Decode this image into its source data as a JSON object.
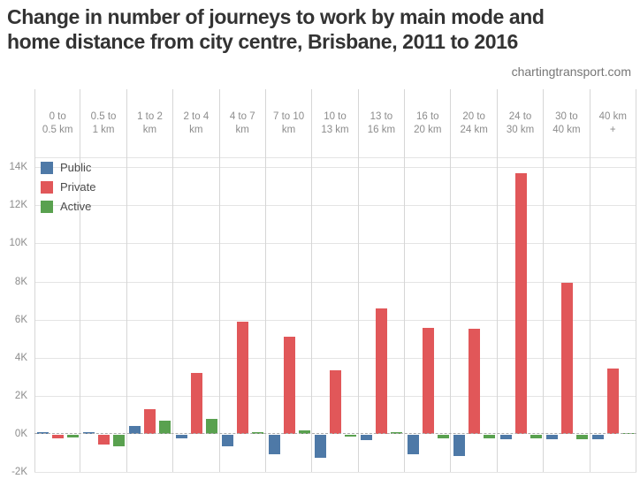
{
  "title": {
    "line1": "Change in number of journeys to work by main mode and",
    "line2": "home distance from city centre, Brisbane, 2011 to 2016"
  },
  "watermark": "chartingtransport.com",
  "chart_data": {
    "type": "bar",
    "title": "Change in number of journeys to work by main mode and home distance from city centre, Brisbane, 2011 to 2016",
    "source_label": "chartingtransport.com",
    "categories": [
      "0 to 0.5 km",
      "0.5 to 1 km",
      "1 to 2 km",
      "2 to 4 km",
      "4 to 7 km",
      "7 to 10 km",
      "10 to 13 km",
      "13 to 16 km",
      "16 to 20 km",
      "20 to 24 km",
      "24 to 30 km",
      "30 to 40 km",
      "40 km +"
    ],
    "category_labels": [
      "0 to\n0.5 km",
      "0.5 to\n1 km",
      "1 to 2\nkm",
      "2 to 4\nkm",
      "4 to 7\nkm",
      "7 to 10\nkm",
      "10 to\n13 km",
      "13 to\n16 km",
      "16 to\n20 km",
      "20 to\n24 km",
      "24 to\n30 km",
      "30 to\n40 km",
      "40 km\n+"
    ],
    "series": [
      {
        "name": "Public",
        "color": "#4e79a7",
        "values": [
          100,
          100,
          400,
          -200,
          -600,
          -1000,
          -1200,
          -300,
          -1000,
          -1100,
          -250,
          -250,
          -250
        ]
      },
      {
        "name": "Private",
        "color": "#e15759",
        "values": [
          -200,
          -500,
          1300,
          3200,
          5900,
          5100,
          3350,
          6600,
          5550,
          5500,
          13700,
          7950,
          3450
        ]
      },
      {
        "name": "Active",
        "color": "#59a14f",
        "values": [
          -150,
          -600,
          700,
          800,
          100,
          200,
          -100,
          100,
          -200,
          -200,
          -200,
          -250,
          50
        ]
      }
    ],
    "xlabel": "",
    "ylabel": "",
    "ylim": [
      -2000,
      14600
    ],
    "y_ticks": [
      {
        "label": "14K",
        "value": 14000
      },
      {
        "label": "12K",
        "value": 12000
      },
      {
        "label": "10K",
        "value": 10000
      },
      {
        "label": "8K",
        "value": 8000
      },
      {
        "label": "6K",
        "value": 6000
      },
      {
        "label": "4K",
        "value": 4000
      },
      {
        "label": "2K",
        "value": 2000
      },
      {
        "label": "0K",
        "value": 0
      },
      {
        "label": "-2K",
        "value": -2000
      }
    ],
    "grid": true,
    "zero_line": "dashed",
    "legend_position": "top-left"
  }
}
